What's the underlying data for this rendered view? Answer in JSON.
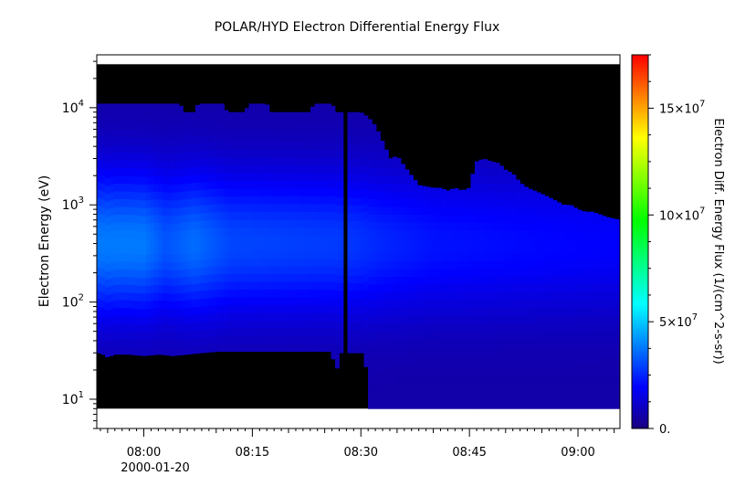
{
  "chart_data": {
    "type": "heatmap",
    "title": "POLAR/HYD  Electron Differential Energy Flux",
    "ylabel": "Electron Energy (eV)",
    "xlabel": "",
    "x_date_label": "2000-01-20",
    "x_ticks": [
      "08:00",
      "08:15",
      "08:30",
      "08:45",
      "09:00"
    ],
    "x_tick_minutes": [
      480,
      495,
      510,
      525,
      540
    ],
    "xlim_minutes": [
      473.5,
      545.8
    ],
    "y_scale": "log",
    "ylim": [
      5,
      35000
    ],
    "y_ticks": [
      {
        "base": "10",
        "exp": "1",
        "value": 10
      },
      {
        "base": "10",
        "exp": "2",
        "value": 100
      },
      {
        "base": "10",
        "exp": "3",
        "value": 1000
      },
      {
        "base": "10",
        "exp": "4",
        "value": 10000
      }
    ],
    "colorbar": {
      "label": "Electron Diff. Energy Flux (1/(cm^2-s-sr))",
      "range": [
        0,
        175000000
      ],
      "ticks": [
        {
          "value": 0,
          "text": "0.",
          "exp": ""
        },
        {
          "value": 50000000,
          "text": "5×10",
          "exp": "7"
        },
        {
          "value": 100000000,
          "text": "10×10",
          "exp": "7"
        },
        {
          "value": 150000000,
          "text": "15×10",
          "exp": "7"
        }
      ],
      "colormap": [
        "#1a0080",
        "#0000ff",
        "#0080ff",
        "#00ffff",
        "#00ff80",
        "#00ff00",
        "#80ff00",
        "#ffff00",
        "#ff8000",
        "#ff0000"
      ]
    },
    "data_extent": {
      "energy_range_ev": [
        8,
        28000
      ],
      "fill_color": "#000000"
    },
    "upper_energy_boundary": {
      "minutes": [
        473.5,
        485,
        485.5,
        487,
        487.5,
        491,
        491.5,
        494,
        494.5,
        497,
        497.5,
        503,
        503.5,
        506,
        506.5,
        508,
        509,
        510,
        511,
        512,
        513,
        514,
        515,
        516,
        517,
        518,
        519,
        520,
        521,
        522,
        523,
        524,
        525,
        526,
        527,
        528,
        529,
        530,
        531,
        532,
        533,
        534,
        535,
        536,
        537,
        538,
        539,
        540,
        541,
        542,
        543,
        544,
        545.8
      ],
      "energy_ev": [
        11000,
        11000,
        9000,
        9000,
        11000,
        11000,
        9000,
        9000,
        11000,
        11000,
        9000,
        9000,
        11000,
        11000,
        9000,
        9000,
        9000,
        9000,
        8000,
        6500,
        4500,
        3000,
        3200,
        2500,
        2000,
        1600,
        1550,
        1500,
        1500,
        1400,
        1500,
        1400,
        1500,
        2800,
        3000,
        2800,
        2700,
        2300,
        2100,
        1700,
        1500,
        1400,
        1300,
        1200,
        1100,
        1000,
        1000,
        900,
        850,
        850,
        800,
        750,
        700
      ]
    },
    "lower_energy_boundary": {
      "minutes": [
        473.5,
        474,
        475,
        476,
        478,
        480,
        482,
        484,
        486,
        488,
        490,
        492,
        494,
        496,
        498,
        500,
        502,
        504,
        506,
        506.5,
        507,
        508,
        509,
        510,
        510.5,
        511,
        545.8
      ],
      "energy_ev": [
        30,
        30,
        27,
        29,
        29,
        28,
        29,
        28,
        29,
        30,
        31,
        31,
        31,
        31,
        31,
        31,
        31,
        31,
        31,
        14,
        30,
        30,
        30,
        30,
        30,
        8,
        8
      ]
    },
    "gaps_minutes": [
      [
        506.2,
        506.6
      ],
      [
        507.8,
        508.0
      ]
    ],
    "flux_profile": {
      "peak_energy_ev": 400,
      "minutes": [
        473.5,
        480,
        483,
        487,
        492,
        500,
        508,
        513,
        520,
        528,
        536,
        545.8
      ],
      "peak_flux": [
        38000000,
        38000000,
        32000000,
        36000000,
        30000000,
        29000000,
        28000000,
        25000000,
        22000000,
        21000000,
        20000000,
        19000000
      ]
    }
  }
}
